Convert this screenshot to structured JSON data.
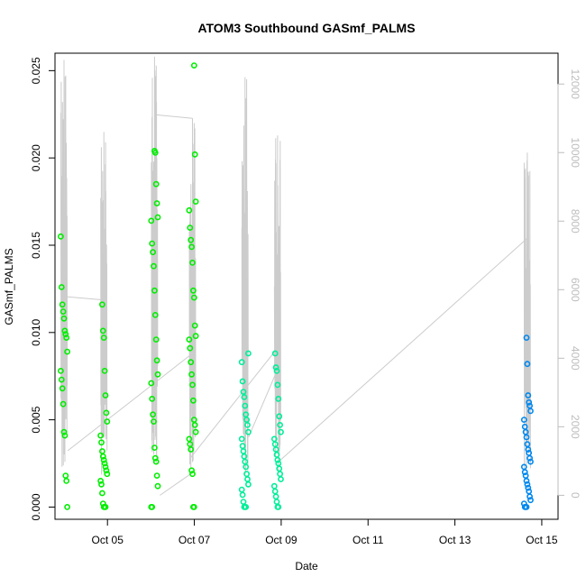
{
  "chart_data": {
    "type": "scatter",
    "title": "ATOM3 Southbound GASmf_PALMS",
    "xlabel": "Date",
    "ylabel": "GASmf_PALMS",
    "x_ticks": [
      "Oct 05",
      "Oct 07",
      "Oct 09",
      "Oct 11",
      "Oct 13",
      "Oct 15"
    ],
    "xlim": [
      "2016-10-03T19:00",
      "2016-10-15T09:00"
    ],
    "ylim": [
      -0.0007,
      0.026
    ],
    "y_ticks": [
      0.0,
      0.005,
      0.01,
      0.015,
      0.02,
      0.025
    ],
    "y_tick_labels": [
      "0.000",
      "0.005",
      "0.010",
      "0.015",
      "0.020",
      "0.025"
    ],
    "y2_ticks": [
      0,
      2000,
      4000,
      6000,
      8000,
      10000,
      12000
    ],
    "y2lim": [
      -700,
      12900
    ],
    "grid": false,
    "legend": "none",
    "colors": {
      "oct04": "#00ee00",
      "oct05": "#00ee00",
      "oct06": "#00ee00",
      "oct07": "#00ee00",
      "oct08": "#00ee99",
      "oct09": "#00ee99",
      "oct14": "#0088ee",
      "altitude_line": "#cccccc"
    },
    "series": [
      {
        "color_key": "oct04",
        "x": "2016-10-04T00:00",
        "values": [
          0.0155,
          0.0126,
          0.0116,
          0.0112,
          0.0108,
          0.0101,
          0.0099,
          0.0097,
          0.0089,
          0.0078,
          0.0073,
          0.0068,
          0.0059,
          0.0043,
          0.0041,
          0.0018,
          0.0015,
          0.0
        ]
      },
      {
        "color_key": "oct05",
        "x": "2016-10-04T22:00",
        "values": [
          0.0116,
          0.0101,
          0.0097,
          0.0078,
          0.0064,
          0.0054,
          0.0049,
          0.0041,
          0.0037,
          0.0032,
          0.0029,
          0.0027,
          0.0025,
          0.0023,
          0.0021,
          0.0019,
          0.0015,
          0.0013,
          0.0008,
          0.0002,
          0.0,
          0.0,
          0.0
        ]
      },
      {
        "color_key": "oct06",
        "x": "2016-10-06T02:00",
        "values": [
          0.0204,
          0.0203,
          0.0185,
          0.0174,
          0.0166,
          0.0164,
          0.0151,
          0.0146,
          0.0138,
          0.0124,
          0.011,
          0.0096,
          0.0084,
          0.0076,
          0.0071,
          0.0062,
          0.0053,
          0.0049,
          0.0034,
          0.0028,
          0.0026,
          0.0018,
          0.0012,
          0.0,
          0.0
        ]
      },
      {
        "color_key": "oct07",
        "x": "2016-10-06T23:00",
        "values": [
          0.0253,
          0.0202,
          0.0175,
          0.017,
          0.016,
          0.0153,
          0.0149,
          0.014,
          0.0124,
          0.012,
          0.0104,
          0.0098,
          0.0096,
          0.0091,
          0.0083,
          0.0076,
          0.007,
          0.0061,
          0.005,
          0.0047,
          0.0043,
          0.0039,
          0.0036,
          0.0033,
          0.0021,
          0.0019,
          0.0,
          0.0
        ]
      },
      {
        "color_key": "oct08",
        "x": "2016-10-08T04:00",
        "values": [
          0.0088,
          0.0083,
          0.0072,
          0.0066,
          0.0063,
          0.0058,
          0.0053,
          0.005,
          0.0047,
          0.0043,
          0.0039,
          0.0035,
          0.0032,
          0.0029,
          0.0026,
          0.0023,
          0.0019,
          0.0016,
          0.0013,
          0.001,
          0.0007,
          0.0003,
          0.0,
          0.0,
          0.0
        ]
      },
      {
        "color_key": "oct09",
        "x": "2016-10-08T22:00",
        "values": [
          0.0088,
          0.008,
          0.0078,
          0.007,
          0.0062,
          0.0052,
          0.0047,
          0.0043,
          0.0039,
          0.0036,
          0.0033,
          0.003,
          0.0027,
          0.0025,
          0.0022,
          0.0019,
          0.0016,
          0.0012,
          0.0009,
          0.0006,
          0.0003,
          0.0,
          0.0
        ]
      },
      {
        "color_key": "oct14",
        "x": "2016-10-14T16:00",
        "values": [
          0.0097,
          0.0082,
          0.0064,
          0.006,
          0.0058,
          0.0055,
          0.005,
          0.0046,
          0.0043,
          0.004,
          0.0036,
          0.0033,
          0.0031,
          0.0028,
          0.0026,
          0.0023,
          0.002,
          0.0018,
          0.0015,
          0.0013,
          0.0011,
          0.0009,
          0.0006,
          0.0004,
          0.0002,
          0.0,
          0.0,
          0.0
        ]
      }
    ],
    "altitude_line": {
      "color_key": "altitude_line",
      "bursts": [
        {
          "x": "2016-10-04T00:00",
          "max": 12700
        },
        {
          "x": "2016-10-04T22:00",
          "max": 10600
        },
        {
          "x": "2016-10-06T02:00",
          "max": 12800
        },
        {
          "x": "2016-10-06T23:00",
          "max": 11000
        },
        {
          "x": "2016-10-08T04:00",
          "max": 12200
        },
        {
          "x": "2016-10-08T22:00",
          "max": 10500
        },
        {
          "x": "2016-10-14T16:00",
          "max": 10000
        }
      ],
      "connectors": [
        [
          {
            "x": "2016-10-04T00:00",
            "y": 5800
          },
          {
            "x": "2016-10-04T22:00",
            "y": 5700
          }
        ],
        [
          {
            "x": "2016-10-04T02:00",
            "y": 1300
          },
          {
            "x": "2016-10-06T22:00",
            "y": 4100
          }
        ],
        [
          {
            "x": "2016-10-06T03:00",
            "y": 11100
          },
          {
            "x": "2016-10-06T23:00",
            "y": 11000
          }
        ],
        [
          {
            "x": "2016-10-06T05:00",
            "y": 0
          },
          {
            "x": "2016-10-07T00:00",
            "y": 700
          }
        ],
        [
          {
            "x": "2016-10-06T22:00",
            "y": 1100
          },
          {
            "x": "2016-10-08T22:00",
            "y": 4300
          }
        ],
        [
          {
            "x": "2016-10-08T06:00",
            "y": 1700
          },
          {
            "x": "2016-10-08T23:00",
            "y": 3800
          }
        ],
        [
          {
            "x": "2016-10-08T23:00",
            "y": 1000
          },
          {
            "x": "2016-10-14T16:00",
            "y": 7500
          }
        ]
      ]
    }
  }
}
